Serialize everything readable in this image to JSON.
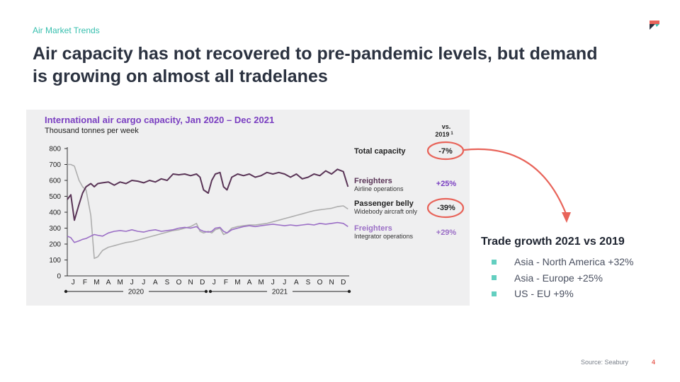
{
  "slide": {
    "eyebrow": "Air Market Trends",
    "title": "Air capacity has not recovered to pre-pandemic levels, but demand is growing on almost all tradelanes",
    "source": "Source: Seabury",
    "page_number": "4",
    "brand_colors": {
      "teal": "#37bfae",
      "red": "#e8645a",
      "dark": "#2b3240"
    },
    "logo_icon": "brand-flag-icon"
  },
  "chart_data": {
    "type": "line",
    "title": "International air cargo capacity, Jan 2020 – Dec 2021",
    "subtitle": "Thousand tonnes per week",
    "ylim": [
      0,
      800
    ],
    "yticks": [
      0,
      100,
      200,
      300,
      400,
      500,
      600,
      700,
      800
    ],
    "month_labels": [
      "J",
      "F",
      "M",
      "A",
      "M",
      "J",
      "J",
      "A",
      "S",
      "O",
      "N",
      "D",
      "J",
      "F",
      "M",
      "A",
      "M",
      "J",
      "J",
      "A",
      "S",
      "O",
      "N",
      "D"
    ],
    "year_labels": [
      "2020",
      "2021"
    ],
    "vs_header": [
      "vs.",
      "2019"
    ],
    "vs_header_superscript": "1",
    "x": [
      0,
      0.3,
      0.6,
      1,
      1.3,
      1.6,
      2,
      2.3,
      2.6,
      3,
      3.5,
      4,
      4.5,
      5,
      5.5,
      6,
      6.5,
      7,
      7.5,
      8,
      8.5,
      9,
      9.5,
      10,
      10.5,
      11,
      11.3,
      11.6,
      12,
      12.3,
      12.6,
      13,
      13.3,
      13.6,
      14,
      14.5,
      15,
      15.5,
      16,
      16.5,
      17,
      17.5,
      18,
      18.5,
      19,
      19.5,
      20,
      20.5,
      21,
      21.5,
      22,
      22.5,
      23,
      23.5,
      23.9
    ],
    "series": [
      {
        "name": "Total capacity",
        "vs_2019": "-7%",
        "color": "#5a3557",
        "values": [
          480,
          510,
          350,
          450,
          520,
          560,
          580,
          560,
          580,
          585,
          590,
          570,
          590,
          580,
          600,
          595,
          585,
          600,
          590,
          610,
          600,
          640,
          635,
          640,
          630,
          640,
          620,
          540,
          520,
          600,
          640,
          650,
          560,
          540,
          620,
          640,
          630,
          640,
          620,
          630,
          650,
          640,
          650,
          640,
          620,
          640,
          610,
          620,
          640,
          630,
          660,
          640,
          670,
          655,
          560
        ]
      },
      {
        "name": "Freighters",
        "sublabel": "Airline operations",
        "vs_2019": "+25%"
      },
      {
        "name": "Passenger belly",
        "sublabel": "Widebody aircraft only",
        "vs_2019": "-39%",
        "color": "#aeaeae",
        "values": [
          700,
          700,
          690,
          600,
          560,
          540,
          380,
          110,
          120,
          160,
          180,
          190,
          200,
          210,
          215,
          225,
          235,
          245,
          255,
          265,
          275,
          285,
          290,
          300,
          310,
          330,
          280,
          270,
          280,
          270,
          290,
          300,
          260,
          270,
          300,
          310,
          315,
          320,
          320,
          325,
          330,
          340,
          350,
          360,
          370,
          380,
          390,
          400,
          410,
          415,
          420,
          425,
          435,
          440,
          420
        ]
      },
      {
        "name": "Freighters",
        "sublabel": "Integrator operations",
        "vs_2019": "+29%",
        "color": "#9b6fc6",
        "values": [
          250,
          240,
          210,
          220,
          230,
          235,
          250,
          260,
          255,
          250,
          270,
          280,
          285,
          280,
          290,
          280,
          275,
          285,
          290,
          280,
          285,
          290,
          300,
          305,
          300,
          310,
          290,
          280,
          275,
          280,
          300,
          305,
          280,
          270,
          290,
          300,
          310,
          315,
          310,
          315,
          320,
          325,
          320,
          315,
          320,
          315,
          320,
          325,
          320,
          330,
          325,
          330,
          335,
          330,
          310
        ]
      }
    ]
  },
  "trade": {
    "title": "Trade growth 2021 vs 2019",
    "items": [
      "Asia - North America +32%",
      "Asia - Europe +25%",
      "US - EU +9%"
    ]
  }
}
